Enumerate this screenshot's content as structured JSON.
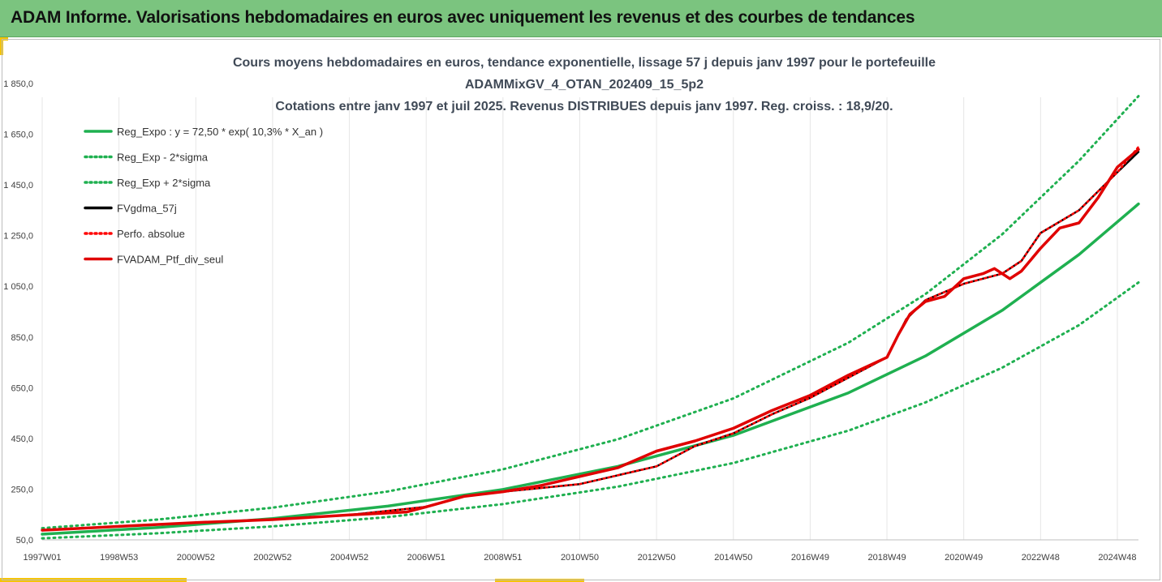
{
  "header": {
    "title": "ADAM Informe. Valorisations hebdomadaires en euros avec uniquement les revenus et des courbes de tendances"
  },
  "colors": {
    "header_bg": "#7bc47f",
    "accent": "#f5c400",
    "reg": "#1fb050",
    "gdma": "#000000",
    "perf": "#ff0000",
    "fvadam": "#e00000"
  },
  "chart_data": {
    "type": "line",
    "title_lines": [
      "Cours moyens hebdomadaires  en euros, tendance exponentielle, lissage 57 j depuis janv 1997 pour le portefeuille",
      "ADAMMixGV_4_OTAN_202409_15_5p2",
      "Cotations  entre janv 1997 et juil 2025. Revenus DISTRIBUES depuis janv 1997. Reg. croiss. : 18,9/20."
    ],
    "y_ticks": [
      "1 850,0",
      "1 650,0",
      "1 450,0",
      "1 250,0",
      "1 050,0",
      "850,0",
      "650,0",
      "450,0",
      "250,0",
      "50,0"
    ],
    "ylim": [
      50,
      1850
    ],
    "x_ticks": [
      "1997W01",
      "1998W53",
      "2000W52",
      "2002W52",
      "2004W52",
      "2006W51",
      "2008W51",
      "2010W50",
      "2012W50",
      "2014W50",
      "2016W49",
      "2018W49",
      "2020W49",
      "2022W48",
      "2024W48"
    ],
    "x_tick_years": [
      1997.0,
      1999.0,
      2001.0,
      2003.0,
      2005.0,
      2007.0,
      2009.0,
      2011.0,
      2013.0,
      2015.0,
      2017.0,
      2019.0,
      2021.0,
      2023.0,
      2025.0
    ],
    "xlim": [
      1997.0,
      2025.55
    ],
    "legend_position": "upper-left",
    "legend": [
      {
        "label": "Reg_Expo : y = 72,50 * exp( 10,3% *  X_an )",
        "color": "#1fb050",
        "style": "solid"
      },
      {
        "label": "Reg_Exp - 2*sigma",
        "color": "#1fb050",
        "style": "dotted"
      },
      {
        "label": "Reg_Exp + 2*sigma",
        "color": "#1fb050",
        "style": "dotted"
      },
      {
        "label": "FVgdma_57j",
        "color": "#000000",
        "style": "solid"
      },
      {
        "label": "Perfo. absolue",
        "color": "#ff0000",
        "style": "dotted"
      },
      {
        "label": "FVADAM_Ptf_div_seul",
        "color": "#e00000",
        "style": "solid"
      }
    ],
    "series": [
      {
        "name": "Reg_Expo : y = 72,50 * exp( 10,3% *  X_an )",
        "x": [
          1997,
          2000,
          2003,
          2006,
          2009,
          2012,
          2015,
          2018,
          2020,
          2022,
          2024,
          2025.55
        ],
        "values": [
          72.5,
          98.7,
          134,
          183,
          249,
          340,
          462,
          630,
          775,
          955,
          1175,
          1375
        ]
      },
      {
        "name": "Reg_Exp - 2*sigma",
        "x": [
          1997,
          2000,
          2003,
          2006,
          2009,
          2012,
          2015,
          2018,
          2020,
          2022,
          2024,
          2025.55
        ],
        "values": [
          56,
          76,
          103,
          140,
          191,
          260,
          353,
          481,
          592,
          729,
          897,
          1065
        ]
      },
      {
        "name": "Reg_Exp + 2*sigma",
        "x": [
          1997,
          2000,
          2003,
          2006,
          2009,
          2012,
          2015,
          2018,
          2020,
          2022,
          2024,
          2025.55
        ],
        "values": [
          96,
          130,
          177,
          241,
          328,
          447,
          608,
          828,
          1019,
          1255,
          1545,
          1800
        ]
      },
      {
        "name": "FVgdma_57j",
        "x": [
          1997,
          1999,
          2001,
          2003,
          2005,
          2007,
          2008,
          2009,
          2011,
          2013,
          2014,
          2015,
          2016,
          2017,
          2018,
          2019,
          2019.5,
          2020,
          2021,
          2022,
          2022.5,
          2023,
          2024,
          2025,
          2025.55
        ],
        "values": [
          88,
          103,
          118,
          130,
          148,
          180,
          222,
          240,
          270,
          340,
          420,
          470,
          545,
          610,
          690,
          770,
          920,
          995,
          1060,
          1100,
          1150,
          1260,
          1350,
          1500,
          1580
        ]
      },
      {
        "name": "Perfo. absolue",
        "x": [
          1997,
          1999,
          2001,
          2003,
          2005,
          2007,
          2008,
          2009,
          2011,
          2013,
          2014,
          2015,
          2016,
          2017,
          2018,
          2019,
          2019.5,
          2020,
          2021,
          2022,
          2022.5,
          2023,
          2024,
          2025,
          2025.55
        ],
        "values": [
          88,
          103,
          118,
          130,
          148,
          180,
          222,
          240,
          270,
          340,
          420,
          470,
          545,
          610,
          690,
          770,
          920,
          995,
          1060,
          1100,
          1150,
          1260,
          1350,
          1500,
          1600
        ]
      },
      {
        "name": "FVADAM_Ptf_div_seul",
        "x": [
          1997,
          1999,
          2001,
          2003,
          2005,
          2006.5,
          2007,
          2008,
          2009,
          2010,
          2011,
          2012,
          2013,
          2014,
          2015,
          2016,
          2017,
          2018,
          2019,
          2019.3,
          2019.6,
          2020,
          2020.5,
          2021,
          2021.5,
          2021.8,
          2022.2,
          2022.5,
          2023,
          2023.5,
          2024,
          2024.5,
          2025,
          2025.55
        ],
        "values": [
          88,
          103,
          118,
          130,
          148,
          160,
          180,
          222,
          240,
          265,
          300,
          335,
          400,
          440,
          490,
          560,
          620,
          700,
          770,
          860,
          940,
          990,
          1010,
          1080,
          1100,
          1120,
          1080,
          1110,
          1200,
          1280,
          1300,
          1400,
          1520,
          1590
        ]
      }
    ]
  }
}
